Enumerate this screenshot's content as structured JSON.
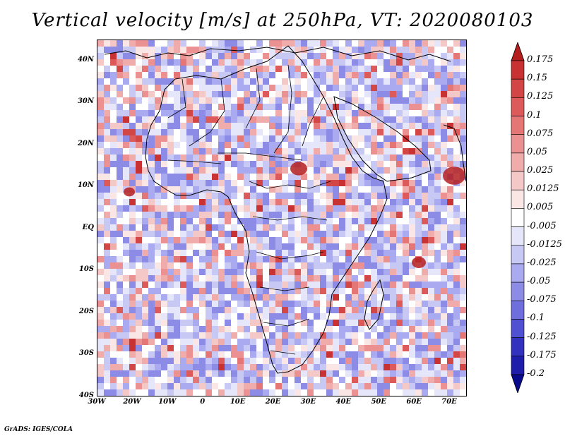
{
  "title": "Vertical velocity [m/s] at 250hPa, VT: 2020080103",
  "credit": "GrADS: IGES/COLA",
  "map": {
    "variable": "Vertical velocity",
    "units": "m/s",
    "level": "250hPa",
    "valid_time": "2020080103",
    "lon_range": [
      -30,
      75
    ],
    "lat_range": [
      -40,
      45
    ],
    "lat_ticks": [
      "40N",
      "30N",
      "20N",
      "10N",
      "EQ",
      "10S",
      "20S",
      "30S",
      "40S"
    ],
    "lat_values": [
      40,
      30,
      20,
      10,
      0,
      -10,
      -20,
      -30,
      -40
    ],
    "lon_ticks": [
      "30W",
      "20W",
      "10W",
      "0",
      "10E",
      "20E",
      "30E",
      "40E",
      "50E",
      "60E",
      "70E"
    ],
    "lon_values": [
      -30,
      -20,
      -10,
      0,
      10,
      20,
      30,
      40,
      50,
      60,
      70
    ]
  },
  "colorbar": {
    "labels": [
      "0.175",
      "0.15",
      "0.125",
      "0.1",
      "0.075",
      "0.05",
      "0.025",
      "0.0125",
      "0.005",
      "-0.005",
      "-0.0125",
      "-0.025",
      "-0.05",
      "-0.075",
      "-0.1",
      "-0.125",
      "-0.175",
      "-0.2"
    ],
    "colors": [
      "#b41e1e",
      "#c83232",
      "#d24646",
      "#dc5a5a",
      "#e47676",
      "#eb9191",
      "#f0abab",
      "#f5c8c8",
      "#fbe6e6",
      "#ffffff",
      "#e6e6fa",
      "#c8c8f5",
      "#aaaaf0",
      "#8c8ce6",
      "#6e6edc",
      "#5050d2",
      "#3232be",
      "#1e1eaa",
      "#0a0a8c"
    ]
  }
}
